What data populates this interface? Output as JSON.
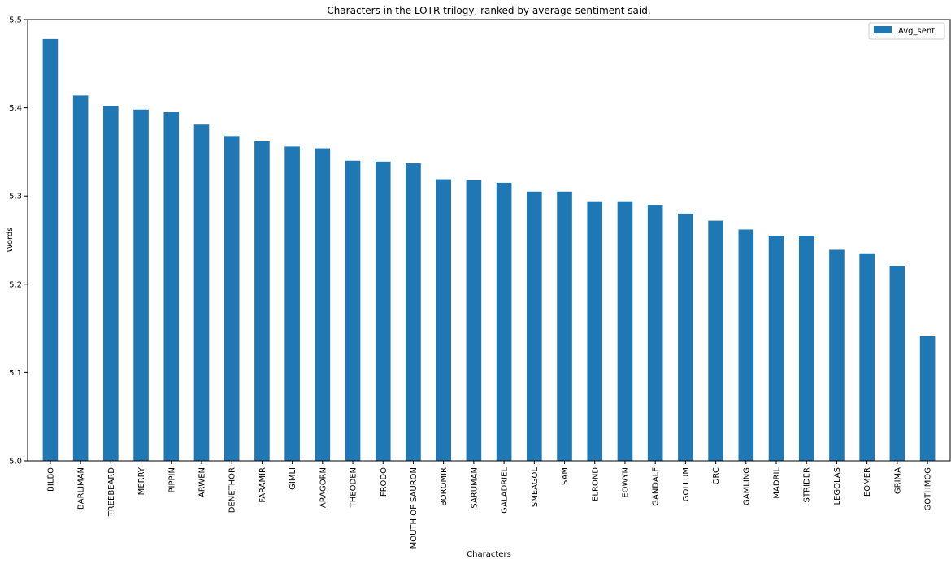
{
  "chart_data": {
    "type": "bar",
    "title": "Characters in the LOTR trilogy, ranked by average sentiment said.",
    "xlabel": "Characters",
    "ylabel": "Words",
    "ylim": [
      5.0,
      5.5
    ],
    "yticks": [
      "5.0",
      "5.1",
      "5.2",
      "5.3",
      "5.4",
      "5.5"
    ],
    "legend_position": "top-right",
    "grid": false,
    "color": "#1f77b4",
    "categories": [
      "BILBO",
      "BARLIMAN",
      "TREEBEARD",
      "MERRY",
      "PIPPIN",
      "ARWEN",
      "DENETHOR",
      "FARAMIR",
      "GIMLI",
      "ARAGORN",
      "THEODEN",
      "FRODO",
      "MOUTH OF SAURON",
      "BOROMIR",
      "SARUMAN",
      "GALADRIEL",
      "SMEAGOL",
      "SAM",
      "ELROND",
      "EOWYN",
      "GANDALF",
      "GOLLUM",
      "ORC",
      "GAMLING",
      "MADRIL",
      "STRIDER",
      "LEGOLAS",
      "EOMER",
      "GRIMA",
      "GOTHMOG"
    ],
    "series": [
      {
        "name": "Avg_sent",
        "values": [
          5.478,
          5.414,
          5.402,
          5.398,
          5.395,
          5.381,
          5.368,
          5.362,
          5.356,
          5.354,
          5.34,
          5.339,
          5.337,
          5.319,
          5.318,
          5.315,
          5.305,
          5.305,
          5.294,
          5.294,
          5.29,
          5.28,
          5.272,
          5.262,
          5.255,
          5.255,
          5.239,
          5.235,
          5.221,
          5.141
        ]
      }
    ]
  }
}
